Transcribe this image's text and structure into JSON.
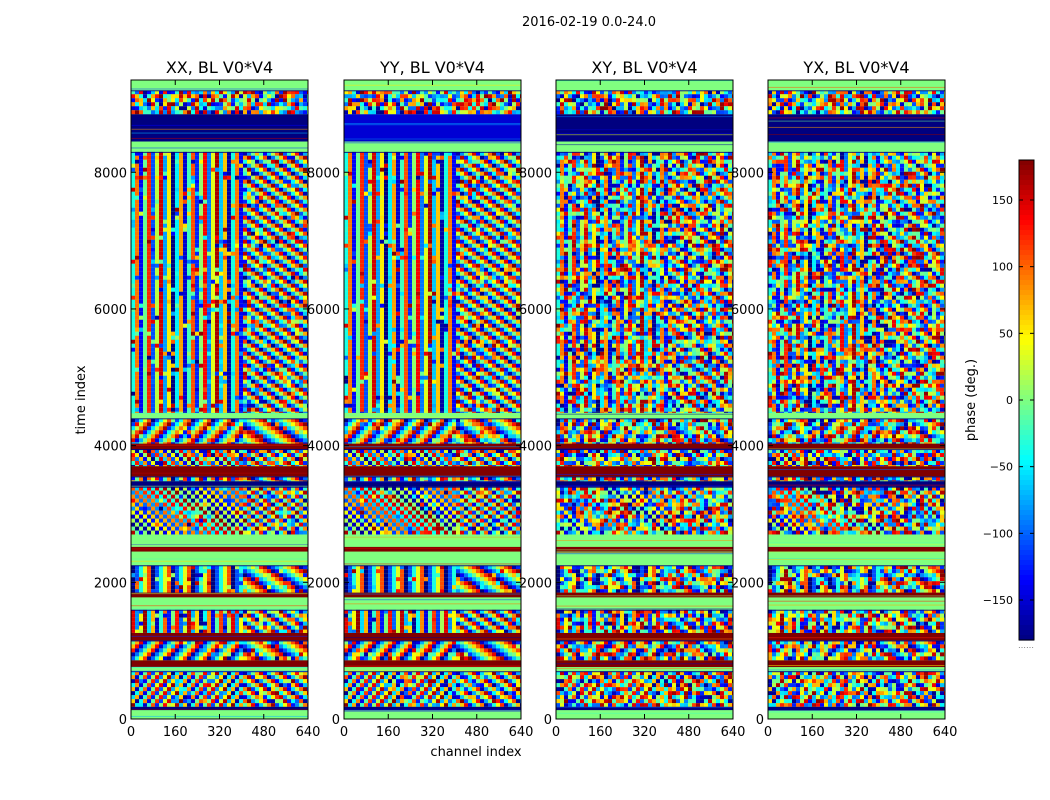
{
  "chart_data": {
    "type": "heatmap",
    "suptitle": "2016-02-19 0.0-24.0",
    "xlabel": "channel index",
    "ylabel": "time index",
    "xlim": [
      0,
      640
    ],
    "ylim": [
      0,
      9350
    ],
    "xticks": [
      0,
      160,
      320,
      480,
      640
    ],
    "yticks": [
      0,
      2000,
      4000,
      6000,
      8000
    ],
    "colormap": "jet",
    "colorbar": {
      "label": "phase (deg.)",
      "range": [
        -180,
        180
      ],
      "ticks": [
        150,
        100,
        50,
        0,
        -50,
        -100,
        -150
      ],
      "tick_labels": [
        "150",
        "100",
        "50",
        "0",
        "−50",
        "−100",
        "−150"
      ],
      "extra_label": "……"
    },
    "panels": [
      {
        "title": "XX, BL V0*V4",
        "polarization": "XX"
      },
      {
        "title": "YY, BL V0*V4",
        "polarization": "YY"
      },
      {
        "title": "XY, BL V0*V4",
        "polarization": "XY"
      },
      {
        "title": "YX, BL V0*V4",
        "polarization": "YX"
      }
    ],
    "bands_note": "time segments (data units) and their dominant pattern",
    "bands": [
      {
        "y0": 0,
        "y1": 130,
        "mode": "flat",
        "value": 0
      },
      {
        "y0": 130,
        "y1": 180,
        "mode": "navy",
        "value": -180
      },
      {
        "y0": 180,
        "y1": 700,
        "mode": "fringe"
      },
      {
        "y0": 700,
        "y1": 760,
        "mode": "flat",
        "value": 0
      },
      {
        "y0": 760,
        "y1": 860,
        "mode": "red",
        "value": 180
      },
      {
        "y0": 860,
        "y1": 1150,
        "mode": "fringe"
      },
      {
        "y0": 1150,
        "y1": 1260,
        "mode": "red",
        "value": 180
      },
      {
        "y0": 1260,
        "y1": 1600,
        "mode": "fringe"
      },
      {
        "y0": 1600,
        "y1": 1780,
        "mode": "flat",
        "value": 0
      },
      {
        "y0": 1780,
        "y1": 1850,
        "mode": "red",
        "value": 180
      },
      {
        "y0": 1850,
        "y1": 2250,
        "mode": "fringe"
      },
      {
        "y0": 2250,
        "y1": 2450,
        "mode": "flat",
        "value": 0
      },
      {
        "y0": 2450,
        "y1": 2520,
        "mode": "red",
        "value": 180
      },
      {
        "y0": 2520,
        "y1": 2700,
        "mode": "flat",
        "value": 0
      },
      {
        "y0": 2700,
        "y1": 3400,
        "mode": "fringe"
      },
      {
        "y0": 3400,
        "y1": 3480,
        "mode": "navy",
        "value": -180
      },
      {
        "y0": 3480,
        "y1": 3550,
        "mode": "fringe"
      },
      {
        "y0": 3550,
        "y1": 3700,
        "mode": "red",
        "value": 180
      },
      {
        "y0": 3700,
        "y1": 3950,
        "mode": "fringe"
      },
      {
        "y0": 3950,
        "y1": 4030,
        "mode": "red",
        "value": 180
      },
      {
        "y0": 4030,
        "y1": 4400,
        "mode": "fringe"
      },
      {
        "y0": 4400,
        "y1": 4480,
        "mode": "flat",
        "value": 0
      },
      {
        "y0": 4480,
        "y1": 8300,
        "mode": "fringe"
      },
      {
        "y0": 8300,
        "y1": 8450,
        "mode": "flat",
        "value": 0
      },
      {
        "y0": 8450,
        "y1": 8850,
        "mode": "navy",
        "value": -180
      },
      {
        "y0": 8850,
        "y1": 9200,
        "mode": "noise"
      },
      {
        "y0": 9200,
        "y1": 9350,
        "mode": "flat",
        "value": 0
      }
    ]
  }
}
